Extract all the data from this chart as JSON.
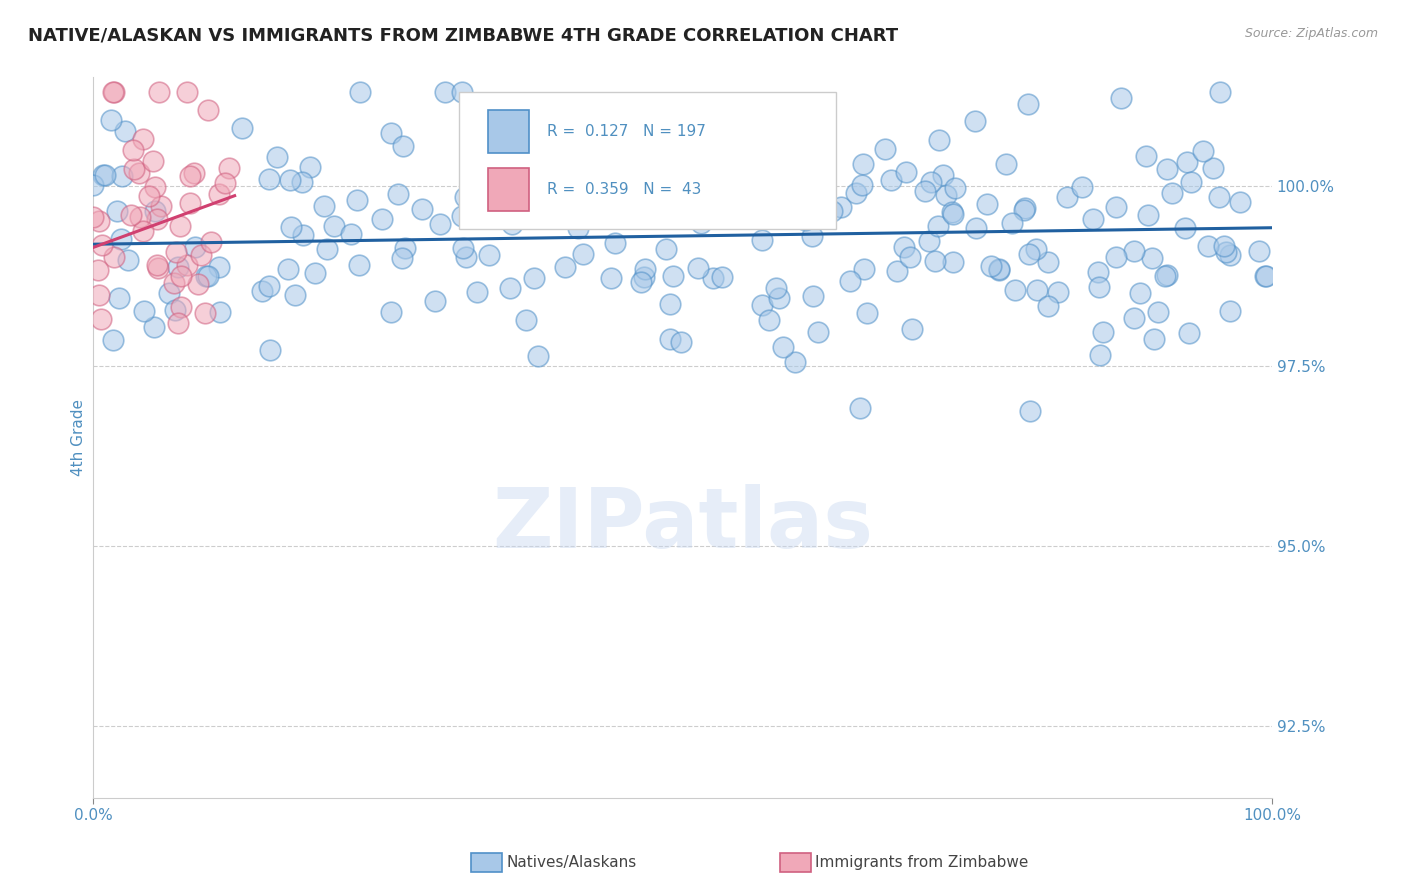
{
  "title": "NATIVE/ALASKAN VS IMMIGRANTS FROM ZIMBABWE 4TH GRADE CORRELATION CHART",
  "source": "Source: ZipAtlas.com",
  "ylabel": "4th Grade",
  "y_tick_labels": [
    "92.5%",
    "95.0%",
    "97.5%",
    "100.0%"
  ],
  "y_tick_values": [
    92.5,
    95.0,
    97.5,
    100.0
  ],
  "x_range": [
    0.0,
    100.0
  ],
  "y_range": [
    91.5,
    101.5
  ],
  "blue_R": 0.127,
  "blue_N": 197,
  "pink_R": 0.359,
  "pink_N": 43,
  "blue_color": "#a8c8e8",
  "blue_edge_color": "#5090c8",
  "pink_color": "#f0a8b8",
  "pink_edge_color": "#d06080",
  "blue_line_color": "#2060a0",
  "pink_line_color": "#d04070",
  "legend_label_blue": "Natives/Alaskans",
  "legend_label_pink": "Immigrants from Zimbabwe",
  "watermark": "ZIPatlas",
  "title_fontsize": 13,
  "axis_label_color": "#5090c0",
  "tick_label_color": "#5090c0",
  "grid_color": "#c8c8c8",
  "background_color": "#ffffff"
}
